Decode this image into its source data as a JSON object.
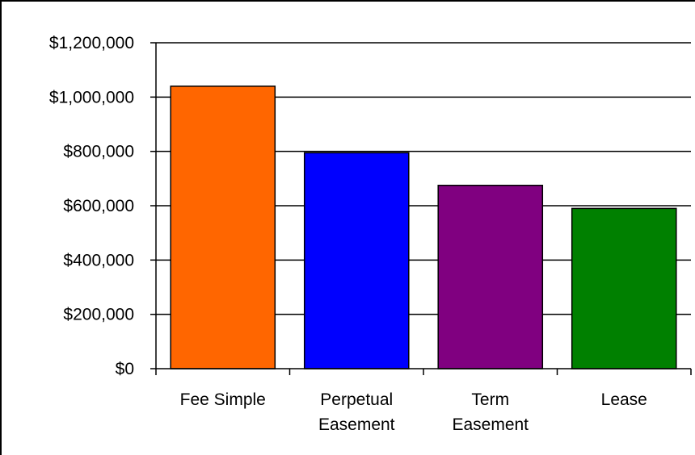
{
  "chart_data": {
    "type": "bar",
    "categories": [
      [
        "Fee Simple"
      ],
      [
        "Perpetual",
        "Easement"
      ],
      [
        "Term",
        "Easement"
      ],
      [
        "Lease"
      ]
    ],
    "values": [
      1040000,
      795000,
      675000,
      590000
    ],
    "ylim": [
      0,
      1200000
    ],
    "yticks": [
      "$0",
      "$200,000",
      "$400,000",
      "$600,000",
      "$800,000",
      "$1,000,000",
      "$1,200,000"
    ],
    "ytick_values": [
      0,
      200000,
      400000,
      600000,
      800000,
      1000000,
      1200000
    ],
    "grid": true,
    "colors": [
      "#FF6600",
      "#0000FF",
      "#800080",
      "#008000"
    ]
  }
}
